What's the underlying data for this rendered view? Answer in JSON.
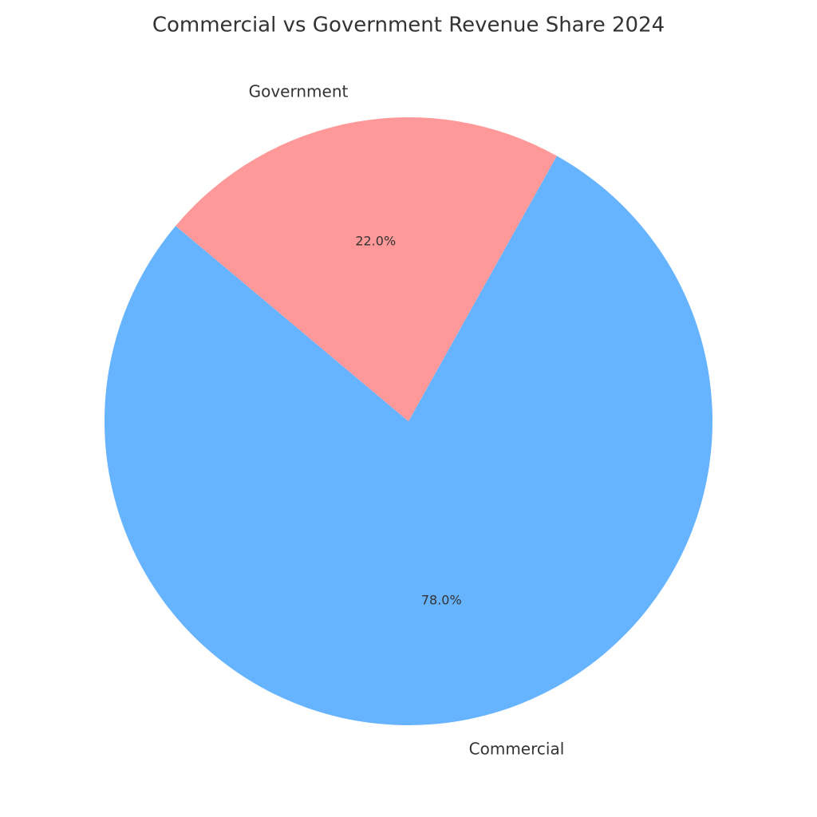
{
  "chart_data": {
    "type": "pie",
    "title": "Commercial vs Government Revenue Share 2024",
    "categories": [
      "Commercial",
      "Government"
    ],
    "values": [
      78,
      22
    ],
    "value_labels": [
      "78.0%",
      "22.0%"
    ],
    "colors": [
      "#66b3ff",
      "#ff9999"
    ]
  }
}
